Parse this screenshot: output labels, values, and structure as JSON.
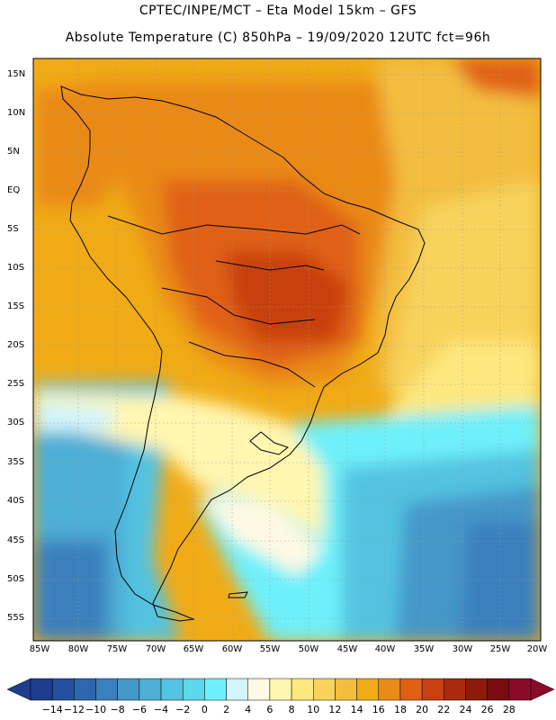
{
  "header": {
    "line1": "CPTEC/INPE/MCT –  Eta Model 15km – GFS",
    "line2": "Absolute Temperature (C) 850hPa – 19/09/2020 12UTC fct=96h"
  },
  "map": {
    "lat_labels": [
      "15N",
      "10N",
      "5N",
      "EQ",
      "5S",
      "10S",
      "15S",
      "20S",
      "25S",
      "30S",
      "35S",
      "40S",
      "45S",
      "50S",
      "55S"
    ],
    "lon_labels": [
      "85W",
      "80W",
      "75W",
      "70W",
      "65W",
      "60W",
      "55W",
      "50W",
      "45W",
      "40W",
      "35W",
      "30W",
      "25W",
      "20W"
    ]
  },
  "colorbar": {
    "labels": [
      "-14",
      "-12",
      "-10",
      "-8",
      "-6",
      "-4",
      "-2",
      "0",
      "2",
      "4",
      "6",
      "8",
      "10",
      "12",
      "14",
      "16",
      "18",
      "20",
      "22",
      "24",
      "26",
      "28"
    ],
    "colors": [
      "#1f3d8f",
      "#25509e",
      "#2e67ad",
      "#3a80bd",
      "#4497c9",
      "#4daed6",
      "#52c3e1",
      "#5bd8ec",
      "#6ef0fa",
      "#d2f4fb",
      "#fff9e4",
      "#fff6b0",
      "#fde87f",
      "#f8d35c",
      "#f3be40",
      "#f0ab16",
      "#ea8a18",
      "#e06012",
      "#c84010",
      "#ab2a0d",
      "#8e1a0a",
      "#7a0b10",
      "#8a0a2a"
    ],
    "under_color": "#1f3d8f",
    "over_color": "#8a0a2a"
  }
}
